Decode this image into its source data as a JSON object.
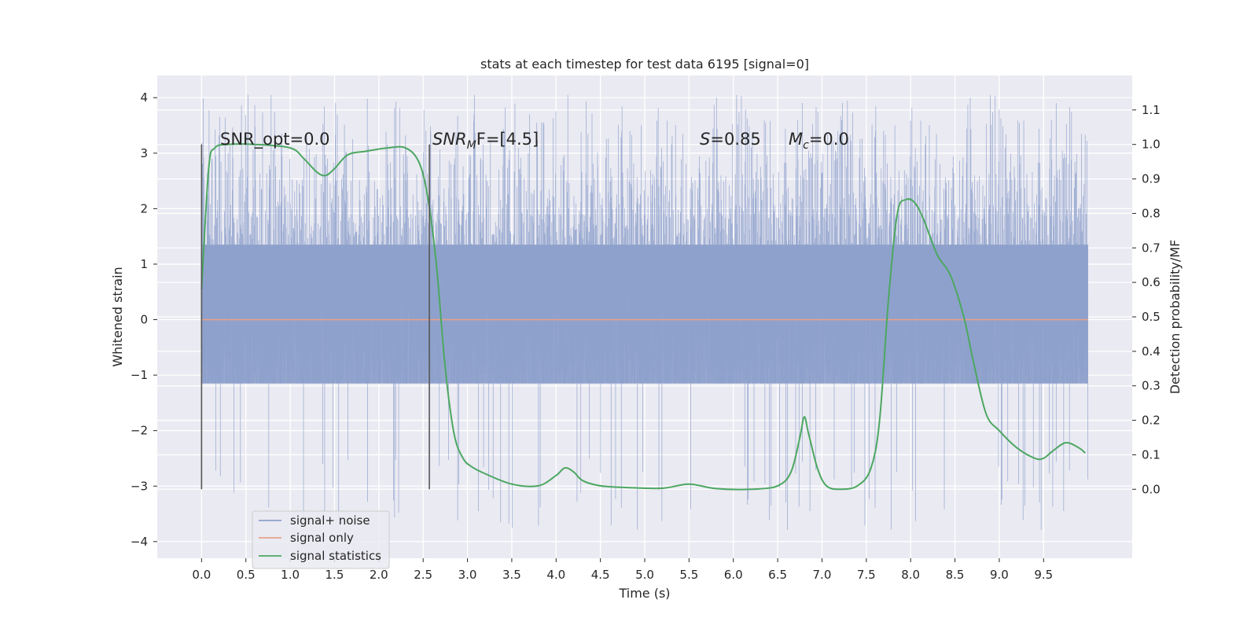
{
  "chart_data": {
    "type": "line",
    "title": "stats at each timestep for test data 6195 [signal=0]",
    "xlabel": "Time (s)",
    "ylabel_left": "Whitened strain",
    "ylabel_right": "Detection probability/MF",
    "xlim": [
      -0.5,
      10.5
    ],
    "ylim_left": [
      -4.3,
      4.4
    ],
    "ylim_right": [
      -0.2,
      1.2
    ],
    "xticks": [
      "0.0",
      "0.5",
      "1.0",
      "1.5",
      "2.0",
      "2.5",
      "3.0",
      "3.5",
      "4.0",
      "4.5",
      "5.0",
      "5.5",
      "6.0",
      "6.5",
      "7.0",
      "7.5",
      "8.0",
      "8.5",
      "9.0",
      "9.5"
    ],
    "yticks_left": [
      "4",
      "3",
      "2",
      "1",
      "0",
      "−1",
      "−2",
      "−3",
      "−4"
    ],
    "yticks_right": [
      "1.1",
      "1.0",
      "0.9",
      "0.8",
      "0.7",
      "0.6",
      "0.5",
      "0.4",
      "0.3",
      "0.2",
      "0.1",
      "0.0"
    ],
    "grid": true,
    "legend_position": "lower-left",
    "annotations": {
      "snr_opt": "SNR_opt=0.0",
      "snr_mf": "SNR_MF=[4.5]",
      "s": "S=0.85",
      "mc": "M_c=0.0"
    },
    "vlines": [
      0.0,
      2.57
    ],
    "series": [
      {
        "name": "signal+ noise",
        "color": "#8da0cb",
        "axis": "left",
        "x_range": [
          0.0,
          10.0
        ],
        "band_core": [
          -1.15,
          1.35
        ],
        "typical_peaks": [
          -2.5,
          3.3
        ],
        "extreme_range": [
          -3.8,
          4.05
        ]
      },
      {
        "name": "signal only",
        "color": "#e8a088",
        "axis": "left",
        "x": [
          0.0,
          10.0
        ],
        "y": [
          0.0,
          0.0
        ]
      },
      {
        "name": "signal statistics",
        "color": "#4ca761",
        "axis": "right",
        "x": [
          0.0,
          0.08,
          0.15,
          0.3,
          0.6,
          1.0,
          1.15,
          1.3,
          1.4,
          1.5,
          1.65,
          1.85,
          2.1,
          2.3,
          2.45,
          2.55,
          2.65,
          2.75,
          2.85,
          2.95,
          3.05,
          3.2,
          3.5,
          3.8,
          4.0,
          4.1,
          4.2,
          4.3,
          4.5,
          4.8,
          5.2,
          5.5,
          5.8,
          6.2,
          6.5,
          6.65,
          6.75,
          6.8,
          6.85,
          6.95,
          7.05,
          7.2,
          7.4,
          7.55,
          7.65,
          7.75,
          7.85,
          7.95,
          8.05,
          8.15,
          8.3,
          8.45,
          8.6,
          8.7,
          8.85,
          9.0,
          9.2,
          9.4,
          9.5,
          9.6,
          9.75,
          9.9,
          9.97
        ],
        "y": [
          0.58,
          0.93,
          0.99,
          1.0,
          1.0,
          0.99,
          0.96,
          0.92,
          0.91,
          0.93,
          0.97,
          0.98,
          0.99,
          0.99,
          0.95,
          0.85,
          0.65,
          0.35,
          0.16,
          0.09,
          0.065,
          0.045,
          0.015,
          0.01,
          0.04,
          0.062,
          0.05,
          0.025,
          0.01,
          0.005,
          0.003,
          0.015,
          0.002,
          0.0,
          0.01,
          0.05,
          0.15,
          0.21,
          0.16,
          0.06,
          0.01,
          0.0,
          0.01,
          0.06,
          0.2,
          0.55,
          0.8,
          0.84,
          0.83,
          0.78,
          0.68,
          0.62,
          0.5,
          0.38,
          0.22,
          0.17,
          0.12,
          0.09,
          0.09,
          0.11,
          0.135,
          0.12,
          0.105
        ]
      }
    ]
  }
}
